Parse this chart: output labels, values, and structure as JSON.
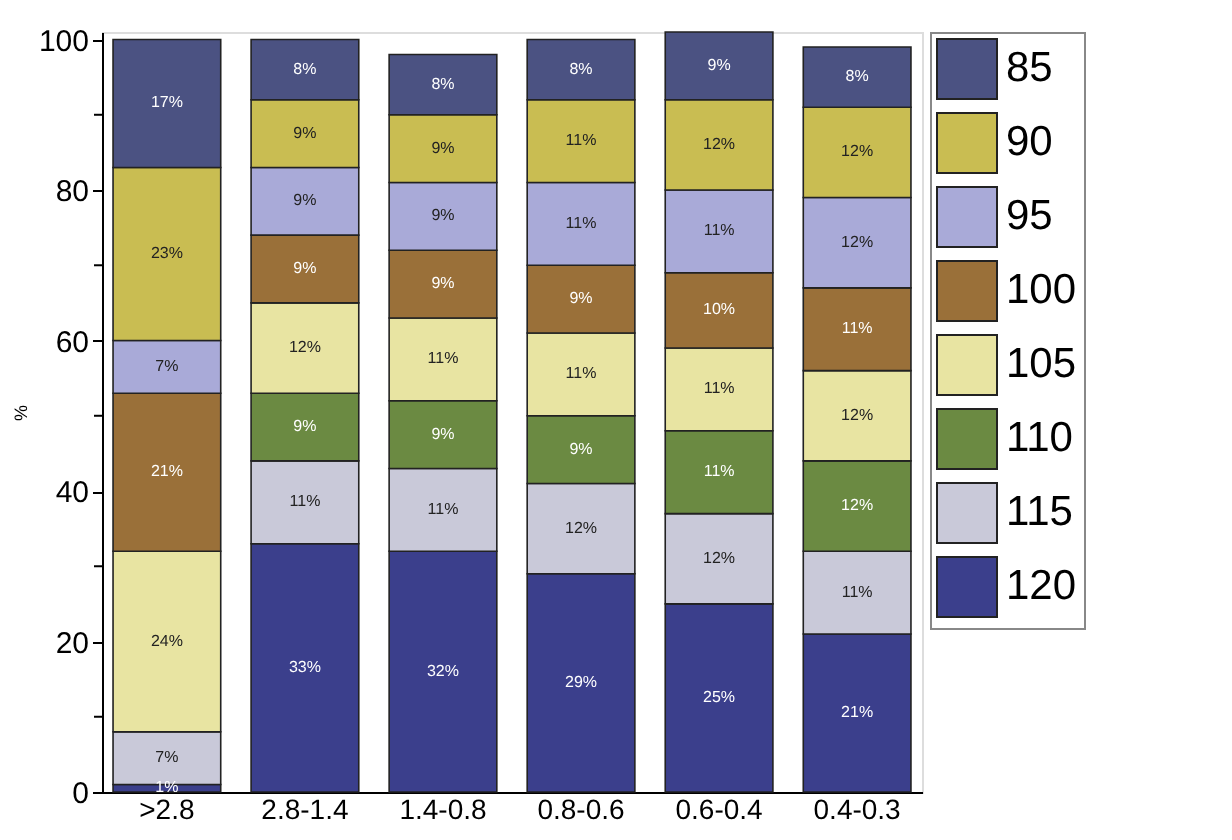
{
  "chart_data": {
    "type": "bar",
    "stacked": true,
    "ylabel": "%",
    "categories": [
      ">2.8",
      "2.8-1.4",
      "1.4-0.8",
      "0.8-0.6",
      "0.6-0.4",
      "0.4-0.3"
    ],
    "series": [
      {
        "name": "120",
        "color": "#3b3f8c",
        "values": [
          1,
          33,
          32,
          29,
          25,
          21
        ],
        "value_labels": [
          "1%",
          "33%",
          "32%",
          "29%",
          "25%",
          "21%"
        ]
      },
      {
        "name": "115",
        "color": "#c9c9d9",
        "values": [
          7,
          11,
          11,
          12,
          12,
          11
        ],
        "value_labels": [
          "7%",
          "11%",
          "11%",
          "12%",
          "12%",
          "11%"
        ]
      },
      {
        "name": "110",
        "color": "#6b8a42",
        "values": [
          0,
          9,
          9,
          9,
          11,
          12
        ],
        "value_labels": [
          null,
          "9%",
          "9%",
          "9%",
          "11%",
          "12%"
        ]
      },
      {
        "name": "105",
        "color": "#e8e4a2",
        "values": [
          24,
          12,
          11,
          11,
          11,
          12
        ],
        "value_labels": [
          "24%",
          "12%",
          "11%",
          "11%",
          "11%",
          "12%"
        ]
      },
      {
        "name": "100",
        "color": "#9a7039",
        "values": [
          21,
          9,
          9,
          9,
          10,
          11
        ],
        "value_labels": [
          "21%",
          "9%",
          "9%",
          "9%",
          "10%",
          "11%"
        ]
      },
      {
        "name": "95",
        "color": "#a9aad8",
        "values": [
          7,
          9,
          9,
          11,
          11,
          12
        ],
        "value_labels": [
          "7%",
          "9%",
          "9%",
          "11%",
          "11%",
          "12%"
        ]
      },
      {
        "name": "90",
        "color": "#c9bd52",
        "values": [
          23,
          9,
          9,
          11,
          12,
          12
        ],
        "value_labels": [
          "23%",
          "9%",
          "9%",
          "11%",
          "12%",
          "12%"
        ]
      },
      {
        "name": "85",
        "color": "#4b5282",
        "values": [
          17,
          8,
          8,
          8,
          9,
          8
        ],
        "value_labels": [
          "17%",
          "8%",
          "8%",
          "8%",
          "9%",
          "8%"
        ]
      }
    ],
    "ylim": [
      0,
      101
    ],
    "yticks": [
      0,
      {
        "value": 10,
        "label": null
      },
      20,
      {
        "value": 30,
        "label": null
      },
      40,
      {
        "value": 50,
        "label": null
      },
      60,
      {
        "value": 70,
        "label": null
      },
      80,
      {
        "value": 90,
        "label": null
      },
      100
    ],
    "grid": false,
    "legend": "top right"
  }
}
